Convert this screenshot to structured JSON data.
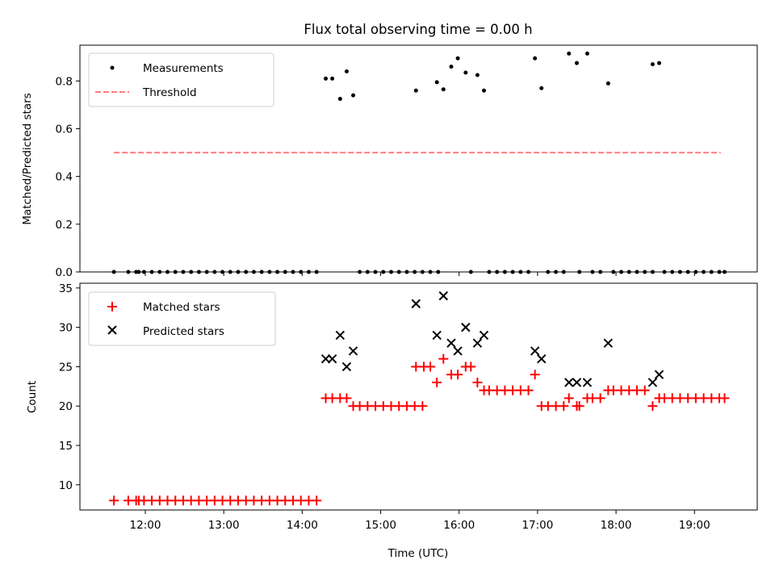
{
  "chart_data": [
    {
      "type": "scatter",
      "title": "Flux total observing time = 0.00 h",
      "xlabel": "",
      "ylabel": "Matched/Predicted stars",
      "xlim": [
        "11:10",
        "19:48"
      ],
      "ylim": [
        0.0,
        0.95
      ],
      "x_ticks": [
        "12:00",
        "13:00",
        "14:00",
        "15:00",
        "16:00",
        "17:00",
        "18:00",
        "19:00"
      ],
      "y_ticks": [
        "0.0",
        "0.2",
        "0.4",
        "0.6",
        "0.8"
      ],
      "legend": {
        "placement": "top-left",
        "entries": [
          "Measurements",
          "Threshold"
        ]
      },
      "threshold": {
        "name": "Threshold",
        "value": 0.5,
        "x_range": [
          "11:36",
          "19:20"
        ],
        "color": "#ff7f7f"
      },
      "series": [
        {
          "name": "Measurements",
          "color": "#000000",
          "points": [
            [
              "11:36",
              0
            ],
            [
              "11:47",
              0
            ],
            [
              "11:53",
              0
            ],
            [
              "11:55",
              0
            ],
            [
              "11:59",
              0
            ],
            [
              "12:05",
              0
            ],
            [
              "12:11",
              0
            ],
            [
              "12:17",
              0
            ],
            [
              "12:23",
              0
            ],
            [
              "12:29",
              0
            ],
            [
              "12:35",
              0
            ],
            [
              "12:41",
              0
            ],
            [
              "12:47",
              0
            ],
            [
              "12:53",
              0
            ],
            [
              "12:59",
              0
            ],
            [
              "13:05",
              0
            ],
            [
              "13:11",
              0
            ],
            [
              "13:17",
              0
            ],
            [
              "13:23",
              0
            ],
            [
              "13:29",
              0
            ],
            [
              "13:35",
              0
            ],
            [
              "13:41",
              0
            ],
            [
              "13:47",
              0
            ],
            [
              "13:53",
              0
            ],
            [
              "13:59",
              0
            ],
            [
              "14:05",
              0
            ],
            [
              "14:11",
              0
            ],
            [
              "14:18",
              0.81
            ],
            [
              "14:23",
              0.81
            ],
            [
              "14:29",
              0.725
            ],
            [
              "14:34",
              0.84
            ],
            [
              "14:39",
              0.74
            ],
            [
              "14:44",
              0
            ],
            [
              "14:50",
              0
            ],
            [
              "14:56",
              0
            ],
            [
              "15:02",
              0
            ],
            [
              "15:08",
              0
            ],
            [
              "15:14",
              0
            ],
            [
              "15:20",
              0
            ],
            [
              "15:26",
              0
            ],
            [
              "15:32",
              0
            ],
            [
              "15:38",
              0
            ],
            [
              "15:44",
              0
            ],
            [
              "15:27",
              0.76
            ],
            [
              "15:43",
              0.795
            ],
            [
              "15:48",
              0.765
            ],
            [
              "15:54",
              0.86
            ],
            [
              "15:59",
              0.895
            ],
            [
              "16:05",
              0.835
            ],
            [
              "16:14",
              0.825
            ],
            [
              "16:19",
              0.76
            ],
            [
              "16:09",
              0
            ],
            [
              "16:23",
              0
            ],
            [
              "16:29",
              0
            ],
            [
              "16:35",
              0
            ],
            [
              "16:41",
              0
            ],
            [
              "16:47",
              0
            ],
            [
              "16:53",
              0
            ],
            [
              "16:58",
              0.895
            ],
            [
              "17:03",
              0.77
            ],
            [
              "17:08",
              0
            ],
            [
              "17:14",
              0
            ],
            [
              "17:20",
              0
            ],
            [
              "17:24",
              0.915
            ],
            [
              "17:30",
              0.875
            ],
            [
              "17:38",
              0.915
            ],
            [
              "17:32",
              0
            ],
            [
              "17:42",
              0
            ],
            [
              "17:48",
              0
            ],
            [
              "17:54",
              0.79
            ],
            [
              "17:58",
              0
            ],
            [
              "18:04",
              0
            ],
            [
              "18:10",
              0
            ],
            [
              "18:16",
              0
            ],
            [
              "18:22",
              0
            ],
            [
              "18:28",
              0
            ],
            [
              "18:28",
              0.87
            ],
            [
              "18:33",
              0.875
            ],
            [
              "18:37",
              0
            ],
            [
              "18:43",
              0
            ],
            [
              "18:49",
              0
            ],
            [
              "18:55",
              0
            ],
            [
              "19:01",
              0
            ],
            [
              "19:07",
              0
            ],
            [
              "19:13",
              0
            ],
            [
              "19:19",
              0
            ],
            [
              "19:23",
              0
            ]
          ]
        }
      ]
    },
    {
      "type": "scatter",
      "title": "",
      "xlabel": "Time (UTC)",
      "ylabel": "Count",
      "xlim": [
        "11:10",
        "19:48"
      ],
      "ylim": [
        6.8,
        35.6
      ],
      "x_ticks": [
        "12:00",
        "13:00",
        "14:00",
        "15:00",
        "16:00",
        "17:00",
        "18:00",
        "19:00"
      ],
      "y_ticks": [
        "10",
        "15",
        "20",
        "25",
        "30",
        "35"
      ],
      "legend": {
        "placement": "top-left",
        "entries": [
          "Matched stars",
          "Predicted stars"
        ]
      },
      "series": [
        {
          "name": "Matched stars",
          "color": "#ff0000",
          "marker": "plus",
          "points": [
            [
              "11:36",
              8
            ],
            [
              "11:47",
              8
            ],
            [
              "11:53",
              8
            ],
            [
              "11:55",
              8
            ],
            [
              "11:59",
              8
            ],
            [
              "12:05",
              8
            ],
            [
              "12:11",
              8
            ],
            [
              "12:17",
              8
            ],
            [
              "12:23",
              8
            ],
            [
              "12:29",
              8
            ],
            [
              "12:35",
              8
            ],
            [
              "12:41",
              8
            ],
            [
              "12:47",
              8
            ],
            [
              "12:53",
              8
            ],
            [
              "12:59",
              8
            ],
            [
              "13:05",
              8
            ],
            [
              "13:11",
              8
            ],
            [
              "13:17",
              8
            ],
            [
              "13:23",
              8
            ],
            [
              "13:29",
              8
            ],
            [
              "13:35",
              8
            ],
            [
              "13:41",
              8
            ],
            [
              "13:47",
              8
            ],
            [
              "13:53",
              8
            ],
            [
              "13:59",
              8
            ],
            [
              "14:05",
              8
            ],
            [
              "14:11",
              8
            ],
            [
              "14:18",
              21
            ],
            [
              "14:23",
              21
            ],
            [
              "14:29",
              21
            ],
            [
              "14:34",
              21
            ],
            [
              "14:39",
              20
            ],
            [
              "14:44",
              20
            ],
            [
              "14:50",
              20
            ],
            [
              "14:56",
              20
            ],
            [
              "15:02",
              20
            ],
            [
              "15:08",
              20
            ],
            [
              "15:14",
              20
            ],
            [
              "15:20",
              20
            ],
            [
              "15:26",
              20
            ],
            [
              "15:32",
              20
            ],
            [
              "15:27",
              25
            ],
            [
              "15:33",
              25
            ],
            [
              "15:38",
              25
            ],
            [
              "15:43",
              23
            ],
            [
              "15:48",
              26
            ],
            [
              "15:54",
              24
            ],
            [
              "15:59",
              24
            ],
            [
              "16:05",
              25
            ],
            [
              "16:09",
              25
            ],
            [
              "16:14",
              23
            ],
            [
              "16:19",
              22
            ],
            [
              "16:23",
              22
            ],
            [
              "16:29",
              22
            ],
            [
              "16:35",
              22
            ],
            [
              "16:41",
              22
            ],
            [
              "16:47",
              22
            ],
            [
              "16:53",
              22
            ],
            [
              "16:58",
              24
            ],
            [
              "17:03",
              20
            ],
            [
              "17:08",
              20
            ],
            [
              "17:14",
              20
            ],
            [
              "17:20",
              20
            ],
            [
              "17:24",
              21
            ],
            [
              "17:30",
              20
            ],
            [
              "17:32",
              20
            ],
            [
              "17:38",
              21
            ],
            [
              "17:42",
              21
            ],
            [
              "17:48",
              21
            ],
            [
              "17:54",
              22
            ],
            [
              "17:58",
              22
            ],
            [
              "18:04",
              22
            ],
            [
              "18:10",
              22
            ],
            [
              "18:16",
              22
            ],
            [
              "18:22",
              22
            ],
            [
              "18:28",
              20
            ],
            [
              "18:33",
              21
            ],
            [
              "18:37",
              21
            ],
            [
              "18:43",
              21
            ],
            [
              "18:49",
              21
            ],
            [
              "18:55",
              21
            ],
            [
              "19:01",
              21
            ],
            [
              "19:07",
              21
            ],
            [
              "19:13",
              21
            ],
            [
              "19:19",
              21
            ],
            [
              "19:23",
              21
            ]
          ]
        },
        {
          "name": "Predicted stars",
          "color": "#000000",
          "marker": "x",
          "points": [
            [
              "14:18",
              26
            ],
            [
              "14:23",
              26
            ],
            [
              "14:29",
              29
            ],
            [
              "14:34",
              25
            ],
            [
              "14:39",
              27
            ],
            [
              "15:27",
              33
            ],
            [
              "15:43",
              29
            ],
            [
              "15:48",
              34
            ],
            [
              "15:54",
              28
            ],
            [
              "15:59",
              27
            ],
            [
              "16:05",
              30
            ],
            [
              "16:14",
              28
            ],
            [
              "16:19",
              29
            ],
            [
              "16:58",
              27
            ],
            [
              "17:03",
              26
            ],
            [
              "17:24",
              23
            ],
            [
              "17:30",
              23
            ],
            [
              "17:38",
              23
            ],
            [
              "17:54",
              28
            ],
            [
              "18:28",
              23
            ],
            [
              "18:33",
              24
            ]
          ]
        }
      ]
    }
  ]
}
